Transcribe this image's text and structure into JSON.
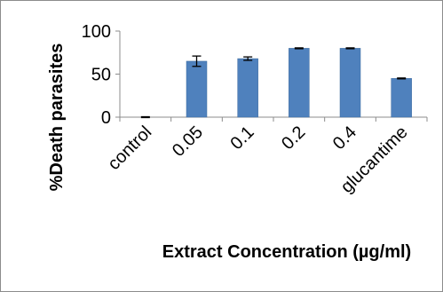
{
  "chart_data": {
    "type": "bar",
    "title": "",
    "xlabel": "Extract Concentration (µg/ml)",
    "ylabel": "%Death parasites",
    "ylim": [
      0,
      100
    ],
    "yticks": [
      0,
      50,
      100
    ],
    "grid": false,
    "legend": "none",
    "categories": [
      "control",
      "0.05",
      "0.1",
      "0.2",
      "0.4",
      "glucantime"
    ],
    "series": [
      {
        "values": [
          0,
          65,
          68,
          80,
          80,
          45
        ],
        "errors": [
          0.5,
          6,
          2,
          0.5,
          0.5,
          0.5
        ]
      }
    ],
    "colors": {
      "bar": "#4F81BD",
      "bar_edge": "#3E6A9E",
      "axis": "#8C8C8C",
      "text": "#000000"
    }
  }
}
